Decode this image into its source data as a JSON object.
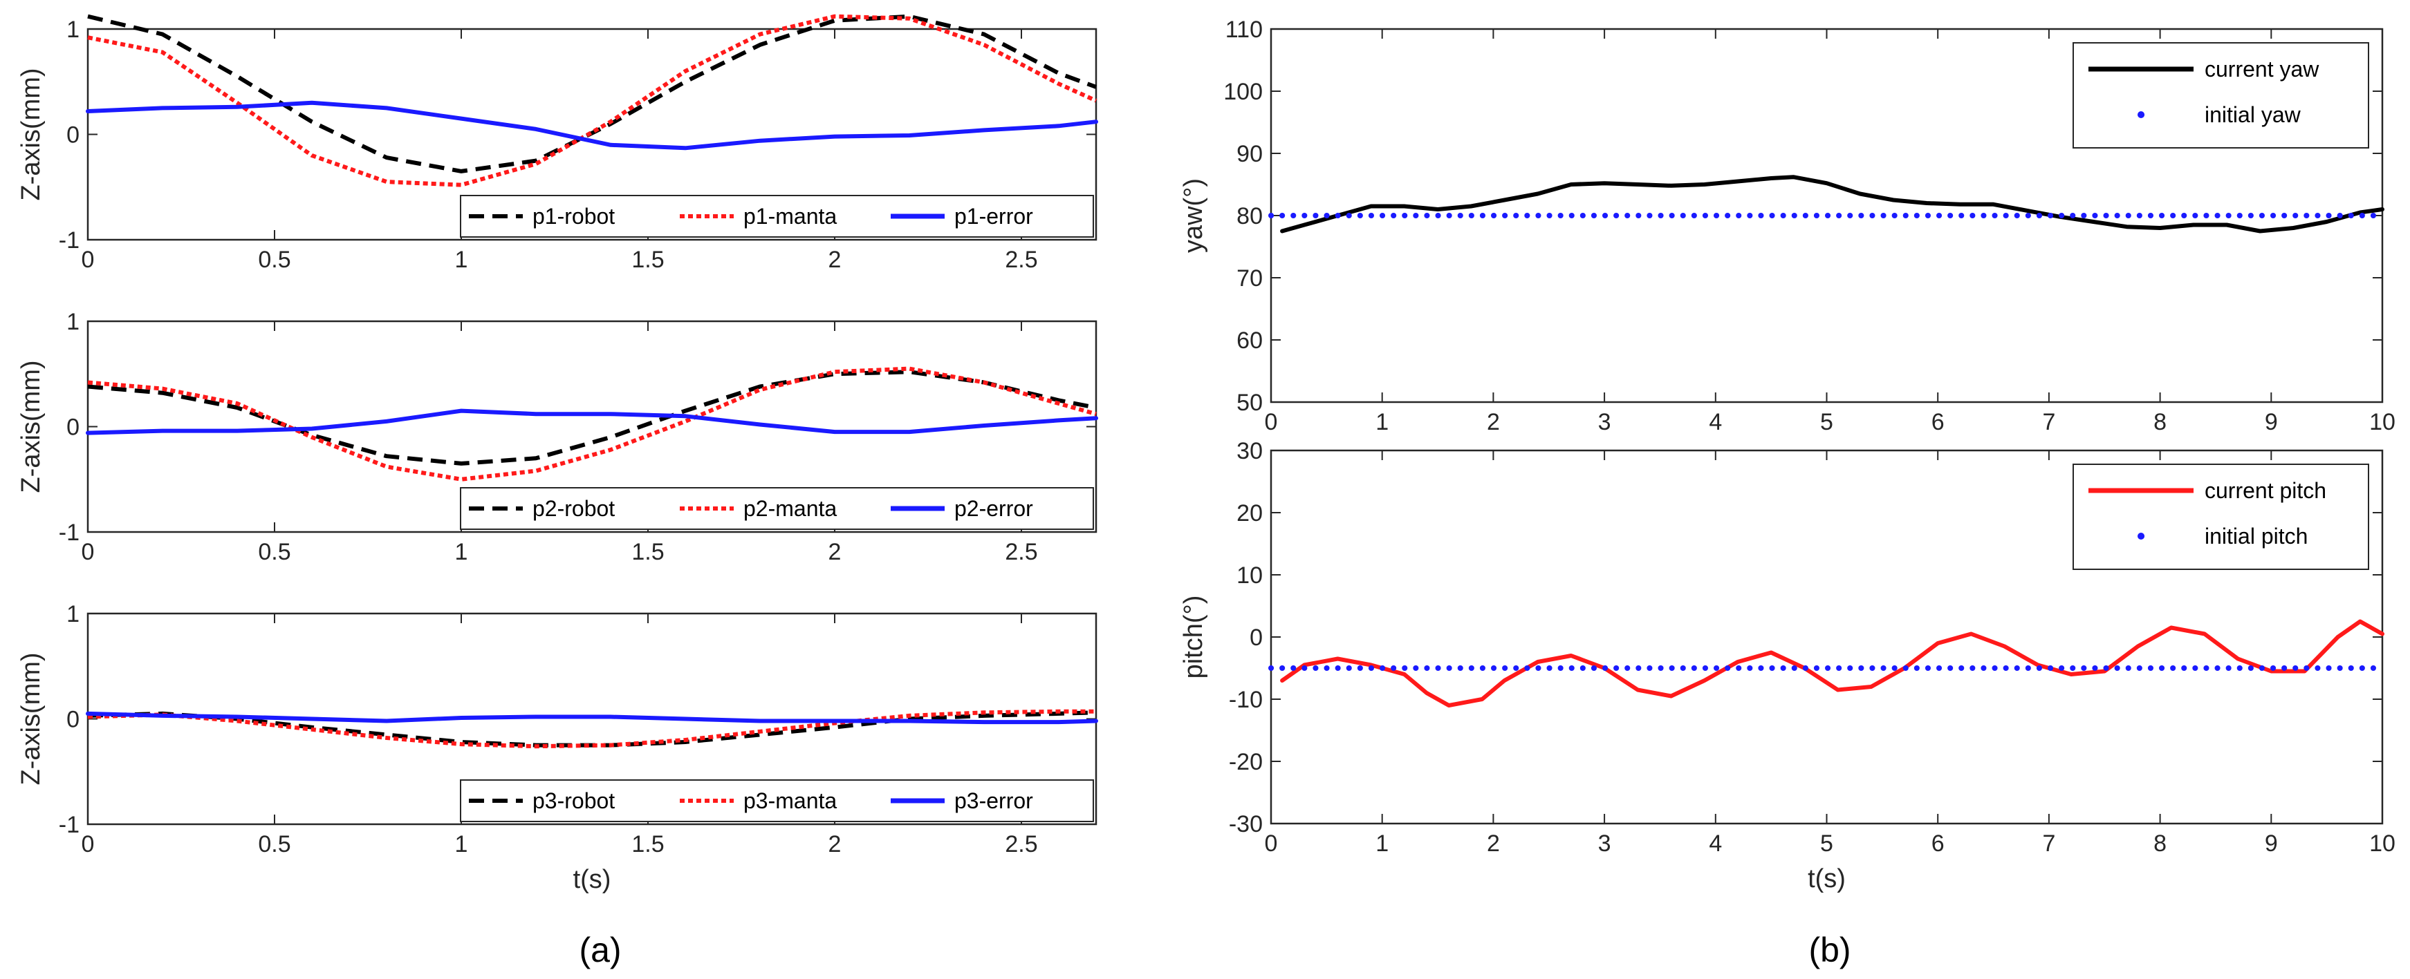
{
  "panels": {
    "a": "(a)",
    "b": "(b)"
  },
  "chart_data": [
    {
      "type": "line",
      "panel": "a",
      "title": "",
      "xlabel": "",
      "ylabel": "Z-axis(mm)",
      "xlim": [
        0,
        2.7
      ],
      "ylim": [
        -1,
        1
      ],
      "xticks": [
        0,
        0.5,
        1,
        1.5,
        2,
        2.5
      ],
      "xtick_labels": [
        "0",
        "0.5",
        "1",
        "1.5",
        "2",
        "2.5"
      ],
      "yticks": [
        -1,
        0,
        1
      ],
      "ytick_labels": [
        "-1",
        "0",
        "1"
      ],
      "legend_position": "bottom-right",
      "colors": {
        "robot": "#000000",
        "manta": "#ff1a1a",
        "error": "#1a1aff"
      },
      "series": [
        {
          "name": "p1-robot",
          "style": "dashed",
          "color": "#000000",
          "x": [
            0,
            0.2,
            0.4,
            0.6,
            0.8,
            1.0,
            1.2,
            1.4,
            1.6,
            1.8,
            2.0,
            2.2,
            2.4,
            2.6,
            2.7
          ],
          "y": [
            1.12,
            0.95,
            0.55,
            0.12,
            -0.22,
            -0.35,
            -0.25,
            0.1,
            0.5,
            0.85,
            1.08,
            1.12,
            0.95,
            0.58,
            0.45
          ]
        },
        {
          "name": "p1-manta",
          "style": "dotted",
          "color": "#ff1a1a",
          "x": [
            0,
            0.2,
            0.4,
            0.6,
            0.8,
            1.0,
            1.2,
            1.4,
            1.6,
            1.8,
            2.0,
            2.2,
            2.4,
            2.6,
            2.7
          ],
          "y": [
            0.92,
            0.78,
            0.3,
            -0.2,
            -0.45,
            -0.48,
            -0.28,
            0.12,
            0.6,
            0.95,
            1.12,
            1.1,
            0.85,
            0.48,
            0.32
          ]
        },
        {
          "name": "p1-error",
          "style": "solid",
          "color": "#1a1aff",
          "x": [
            0,
            0.2,
            0.4,
            0.6,
            0.8,
            1.0,
            1.2,
            1.4,
            1.6,
            1.8,
            2.0,
            2.2,
            2.4,
            2.6,
            2.7
          ],
          "y": [
            0.22,
            0.25,
            0.26,
            0.3,
            0.25,
            0.15,
            0.05,
            -0.1,
            -0.13,
            -0.06,
            -0.02,
            -0.01,
            0.04,
            0.08,
            0.12
          ]
        }
      ],
      "legend": [
        "p1-robot",
        "p1-manta",
        "p1-error"
      ]
    },
    {
      "type": "line",
      "panel": "a",
      "title": "",
      "xlabel": "",
      "ylabel": "Z-axis(mm)",
      "xlim": [
        0,
        2.7
      ],
      "ylim": [
        -1,
        1
      ],
      "xticks": [
        0,
        0.5,
        1,
        1.5,
        2,
        2.5
      ],
      "xtick_labels": [
        "0",
        "0.5",
        "1",
        "1.5",
        "2",
        "2.5"
      ],
      "yticks": [
        -1,
        0,
        1
      ],
      "ytick_labels": [
        "-1",
        "0",
        "1"
      ],
      "legend_position": "bottom-right",
      "series": [
        {
          "name": "p2-robot",
          "style": "dashed",
          "color": "#000000",
          "x": [
            0,
            0.2,
            0.4,
            0.6,
            0.8,
            1.0,
            1.2,
            1.4,
            1.6,
            1.8,
            2.0,
            2.2,
            2.4,
            2.6,
            2.7
          ],
          "y": [
            0.38,
            0.32,
            0.18,
            -0.08,
            -0.28,
            -0.35,
            -0.3,
            -0.1,
            0.15,
            0.38,
            0.5,
            0.52,
            0.42,
            0.25,
            0.18
          ]
        },
        {
          "name": "p2-manta",
          "style": "dotted",
          "color": "#ff1a1a",
          "x": [
            0,
            0.2,
            0.4,
            0.6,
            0.8,
            1.0,
            1.2,
            1.4,
            1.6,
            1.8,
            2.0,
            2.2,
            2.4,
            2.6,
            2.7
          ],
          "y": [
            0.42,
            0.36,
            0.22,
            -0.1,
            -0.38,
            -0.5,
            -0.42,
            -0.22,
            0.05,
            0.35,
            0.52,
            0.55,
            0.42,
            0.22,
            0.12
          ]
        },
        {
          "name": "p2-error",
          "style": "solid",
          "color": "#1a1aff",
          "x": [
            0,
            0.2,
            0.4,
            0.6,
            0.8,
            1.0,
            1.2,
            1.4,
            1.6,
            1.8,
            2.0,
            2.2,
            2.4,
            2.6,
            2.7
          ],
          "y": [
            -0.06,
            -0.04,
            -0.04,
            -0.02,
            0.05,
            0.15,
            0.12,
            0.12,
            0.1,
            0.02,
            -0.05,
            -0.05,
            0.01,
            0.06,
            0.08
          ]
        }
      ],
      "legend": [
        "p2-robot",
        "p2-manta",
        "p2-error"
      ]
    },
    {
      "type": "line",
      "panel": "a",
      "title": "",
      "xlabel": "t(s)",
      "ylabel": "Z-axis(mm)",
      "xlim": [
        0,
        2.7
      ],
      "ylim": [
        -1,
        1
      ],
      "xticks": [
        0,
        0.5,
        1,
        1.5,
        2,
        2.5
      ],
      "xtick_labels": [
        "0",
        "0.5",
        "1",
        "1.5",
        "2",
        "2.5"
      ],
      "yticks": [
        -1,
        0,
        1
      ],
      "ytick_labels": [
        "-1",
        "0",
        "1"
      ],
      "legend_position": "bottom-right",
      "series": [
        {
          "name": "p3-robot",
          "style": "dashed",
          "color": "#000000",
          "x": [
            0,
            0.2,
            0.4,
            0.6,
            0.8,
            1.0,
            1.2,
            1.4,
            1.6,
            1.8,
            2.0,
            2.2,
            2.4,
            2.6,
            2.7
          ],
          "y": [
            0.03,
            0.05,
            0.0,
            -0.08,
            -0.15,
            -0.22,
            -0.25,
            -0.25,
            -0.22,
            -0.15,
            -0.08,
            0.0,
            0.03,
            0.05,
            0.06
          ]
        },
        {
          "name": "p3-manta",
          "style": "dotted",
          "color": "#ff1a1a",
          "x": [
            0,
            0.2,
            0.4,
            0.6,
            0.8,
            1.0,
            1.2,
            1.4,
            1.6,
            1.8,
            2.0,
            2.2,
            2.4,
            2.6,
            2.7
          ],
          "y": [
            0.02,
            0.04,
            -0.02,
            -0.1,
            -0.18,
            -0.24,
            -0.26,
            -0.25,
            -0.2,
            -0.12,
            -0.04,
            0.03,
            0.06,
            0.07,
            0.07
          ]
        },
        {
          "name": "p3-error",
          "style": "solid",
          "color": "#1a1aff",
          "x": [
            0,
            0.2,
            0.4,
            0.6,
            0.8,
            1.0,
            1.2,
            1.4,
            1.6,
            1.8,
            2.0,
            2.2,
            2.4,
            2.6,
            2.7
          ],
          "y": [
            0.05,
            0.03,
            0.02,
            0.0,
            -0.02,
            0.01,
            0.02,
            0.02,
            0.0,
            -0.02,
            -0.02,
            -0.02,
            -0.03,
            -0.03,
            -0.02
          ]
        }
      ],
      "legend": [
        "p3-robot",
        "p3-manta",
        "p3-error"
      ]
    },
    {
      "type": "line",
      "panel": "b",
      "title": "",
      "xlabel": "",
      "ylabel": "yaw(°)",
      "xlim": [
        0,
        10
      ],
      "ylim": [
        50,
        110
      ],
      "xticks": [
        0,
        1,
        2,
        3,
        4,
        5,
        6,
        7,
        8,
        9,
        10
      ],
      "xtick_labels": [
        "0",
        "1",
        "2",
        "3",
        "4",
        "5",
        "6",
        "7",
        "8",
        "9",
        "10"
      ],
      "yticks": [
        50,
        60,
        70,
        80,
        90,
        100,
        110
      ],
      "ytick_labels": [
        "50",
        "60",
        "70",
        "80",
        "90",
        "100",
        "110"
      ],
      "legend_position": "top-right",
      "series": [
        {
          "name": "current yaw",
          "style": "solid",
          "color": "#000000",
          "x": [
            0.1,
            0.3,
            0.6,
            0.9,
            1.2,
            1.5,
            1.8,
            2.1,
            2.4,
            2.7,
            3.0,
            3.3,
            3.6,
            3.9,
            4.2,
            4.5,
            4.7,
            5.0,
            5.3,
            5.6,
            5.9,
            6.2,
            6.5,
            6.8,
            7.1,
            7.4,
            7.7,
            8.0,
            8.3,
            8.6,
            8.9,
            9.2,
            9.5,
            9.8,
            10.0
          ],
          "y": [
            77.5,
            78.5,
            80,
            81.5,
            81.5,
            81,
            81.5,
            82.5,
            83.5,
            85,
            85.2,
            85,
            84.8,
            85,
            85.5,
            86,
            86.2,
            85.2,
            83.5,
            82.5,
            82,
            81.8,
            81.8,
            80.8,
            79.8,
            79,
            78.2,
            78,
            78.5,
            78.5,
            77.5,
            78,
            79,
            80.5,
            81
          ]
        },
        {
          "name": "initial yaw",
          "style": "dotted",
          "color": "#1a1aff",
          "x": [
            0,
            10
          ],
          "y": [
            80,
            80
          ]
        }
      ],
      "legend": [
        "current yaw",
        "initial yaw"
      ]
    },
    {
      "type": "line",
      "panel": "b",
      "title": "",
      "xlabel": "t(s)",
      "ylabel": "pitch(°)",
      "xlim": [
        0,
        10
      ],
      "ylim": [
        -30,
        30
      ],
      "xticks": [
        0,
        1,
        2,
        3,
        4,
        5,
        6,
        7,
        8,
        9,
        10
      ],
      "xtick_labels": [
        "0",
        "1",
        "2",
        "3",
        "4",
        "5",
        "6",
        "7",
        "8",
        "9",
        "10"
      ],
      "yticks": [
        -30,
        -20,
        -10,
        0,
        10,
        20,
        30
      ],
      "ytick_labels": [
        "-30",
        "-20",
        "-10",
        "0",
        "10",
        "20",
        "30"
      ],
      "legend_position": "top-right",
      "series": [
        {
          "name": "current pitch",
          "style": "solid",
          "color": "#ff1a1a",
          "x": [
            0.1,
            0.3,
            0.6,
            0.9,
            1.2,
            1.4,
            1.6,
            1.9,
            2.1,
            2.4,
            2.7,
            3.0,
            3.3,
            3.6,
            3.9,
            4.2,
            4.5,
            4.8,
            5.1,
            5.4,
            5.7,
            6.0,
            6.3,
            6.6,
            6.9,
            7.2,
            7.5,
            7.8,
            8.1,
            8.4,
            8.7,
            9.0,
            9.3,
            9.6,
            9.8,
            10.0
          ],
          "y": [
            -7,
            -4.5,
            -3.5,
            -4.5,
            -6,
            -9,
            -11,
            -10,
            -7,
            -4,
            -3,
            -5,
            -8.5,
            -9.5,
            -7,
            -4,
            -2.5,
            -5,
            -8.5,
            -8,
            -5,
            -1,
            0.5,
            -1.5,
            -4.5,
            -6,
            -5.5,
            -1.5,
            1.5,
            0.5,
            -3.5,
            -5.5,
            -5.5,
            0,
            2.5,
            0.5
          ]
        },
        {
          "name": "initial pitch",
          "style": "dotted",
          "color": "#1a1aff",
          "x": [
            0,
            10
          ],
          "y": [
            -5,
            -5
          ]
        }
      ],
      "legend": [
        "current pitch",
        "initial pitch"
      ]
    }
  ]
}
